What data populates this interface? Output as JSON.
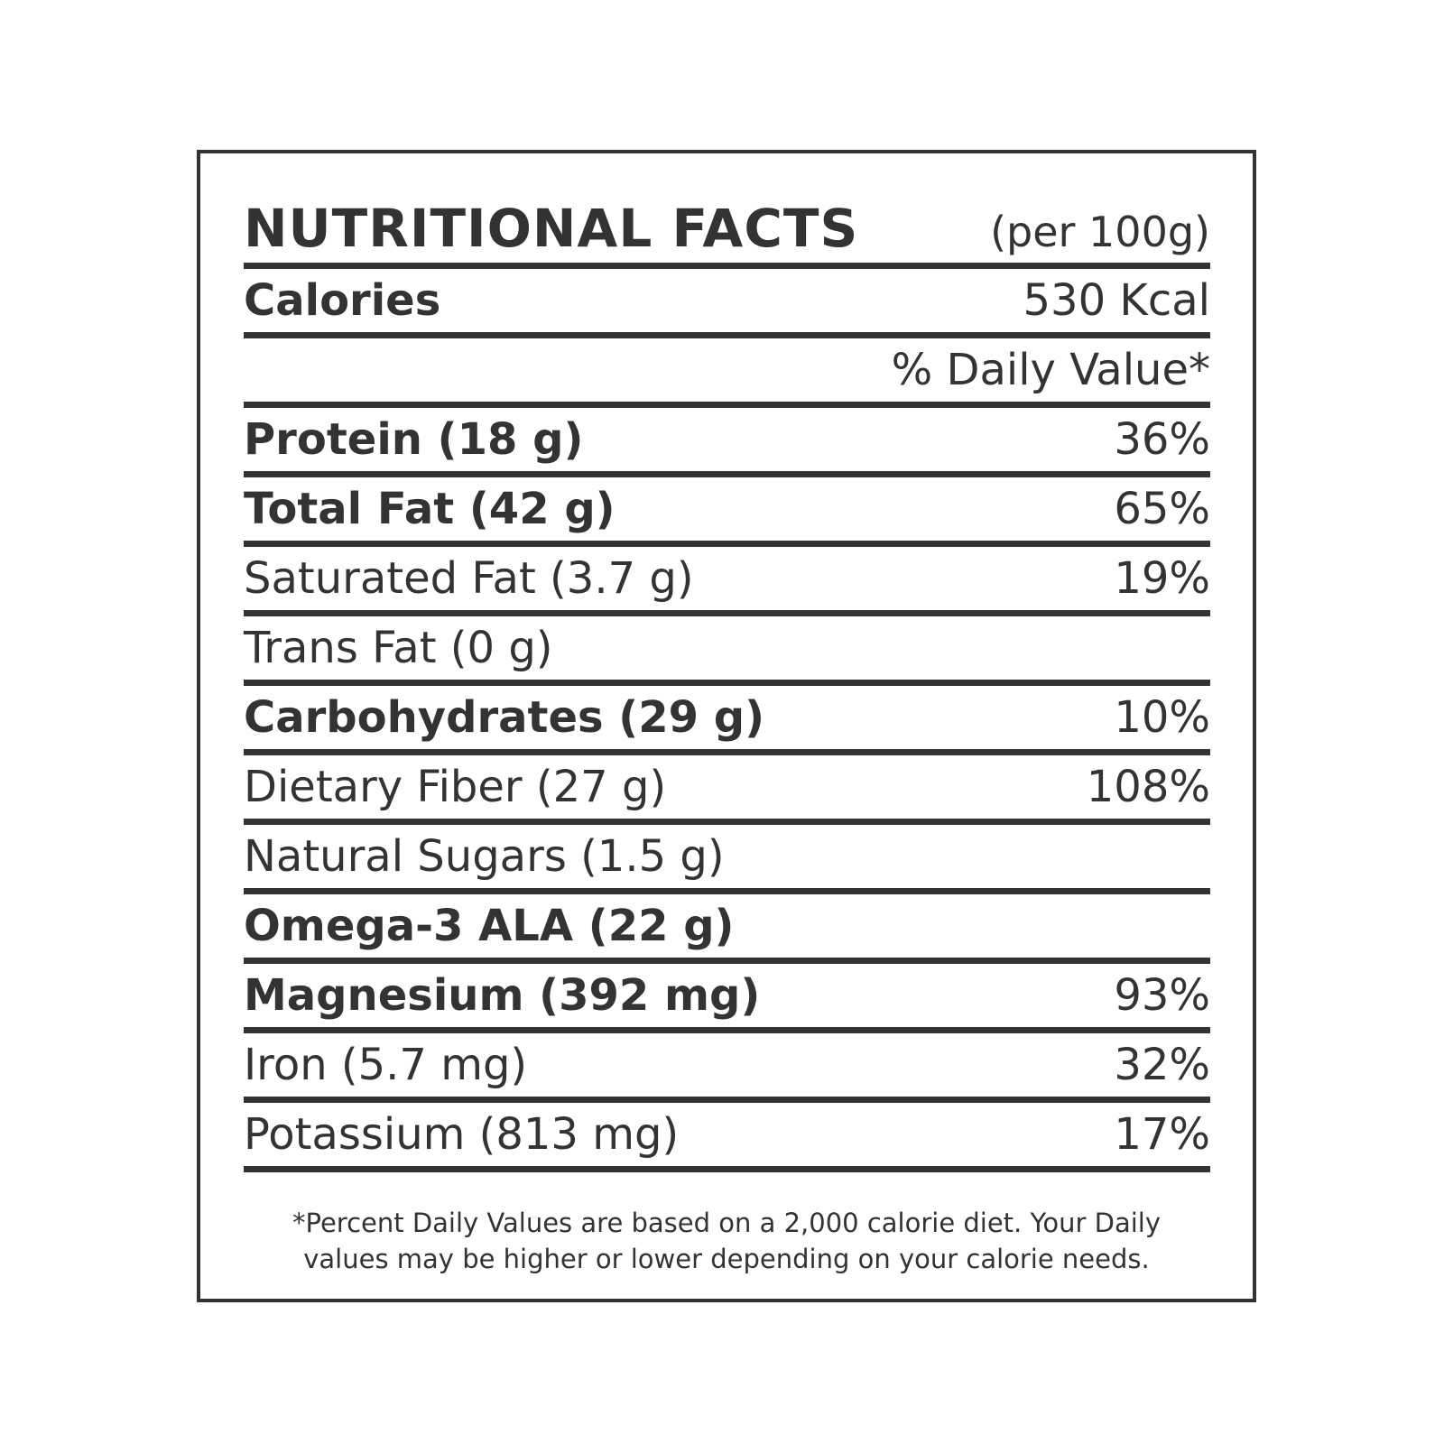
{
  "header": {
    "title": "NUTRITIONAL FACTS",
    "subtitle": "(per 100g)"
  },
  "calories": {
    "label": "Calories",
    "value": "530 Kcal"
  },
  "daily_value_header": "% Daily Value*",
  "rows": [
    {
      "label": "Protein (18 g)",
      "value": "36%",
      "bold": true
    },
    {
      "label": "Total Fat (42 g)",
      "value": "65%",
      "bold": true
    },
    {
      "label": "Saturated Fat (3.7 g)",
      "value": "19%",
      "bold": false
    },
    {
      "label": "Trans Fat (0 g)",
      "bold": false
    },
    {
      "label": "Carbohydrates (29 g)",
      "value": "10%",
      "bold": true
    },
    {
      "label": "Dietary Fiber (27 g)",
      "value": "108%",
      "bold": false
    },
    {
      "label": "Natural Sugars (1.5 g)",
      "bold": false
    },
    {
      "label": "Omega-3 ALA (22 g)",
      "bold": true
    },
    {
      "label": "Magnesium (392 mg)",
      "value": "93%",
      "bold": true
    },
    {
      "label": "Iron (5.7 mg)",
      "value": "32%",
      "bold": false
    },
    {
      "label": "Potassium (813 mg)",
      "value": "17%",
      "bold": false
    }
  ],
  "footnote": [
    "*Percent Daily Values are based on a 2,000 calorie diet. Your Daily",
    "values may be higher or lower depending on your calorie needs."
  ]
}
